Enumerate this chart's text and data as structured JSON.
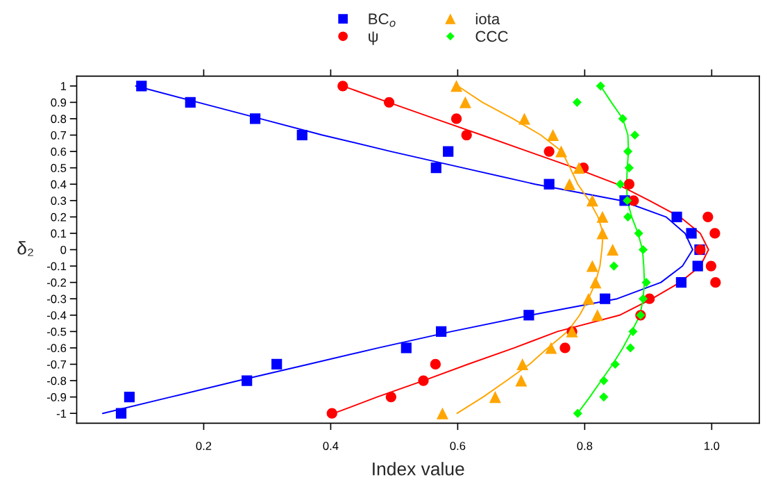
{
  "chart_data": {
    "type": "scatter",
    "xlabel": "Index value",
    "ylabel": "δ₂",
    "xlim": [
      0,
      1.075
    ],
    "ylim": [
      -1.06,
      1.06
    ],
    "xticks": [
      0.2,
      0.4,
      0.6,
      0.8,
      {
        "value": 1,
        "label": "1.0"
      }
    ],
    "yticks": [
      1,
      0.9,
      0.8,
      0.7,
      0.6,
      0.5,
      0.4,
      0.3,
      0.2,
      0.1,
      0,
      -0.1,
      -0.2,
      -0.3,
      -0.4,
      -0.5,
      -0.6,
      -0.7,
      -0.8,
      -0.9,
      -1
    ],
    "grid": false,
    "legend": "top",
    "series": [
      {
        "name": "BC$_{o}$",
        "marker": "square",
        "color": "#0000ff",
        "x": [
          0.102,
          0.179,
          0.281,
          0.355,
          0.585,
          0.566,
          0.744,
          0.863,
          0.945,
          0.968,
          0.981,
          0.978,
          0.952,
          0.832,
          0.712,
          0.574,
          0.519,
          0.315,
          0.268,
          0.083,
          0.07
        ],
        "values": [
          1,
          0.9,
          0.8,
          0.7,
          0.6,
          0.5,
          0.4,
          0.3,
          0.2,
          0.1,
          0,
          -0.1,
          -0.2,
          -0.3,
          -0.4,
          -0.5,
          -0.6,
          -0.7,
          -0.8,
          -0.9,
          -1
        ]
      },
      {
        "name": "ψ",
        "marker": "circle",
        "color": "#ff0000",
        "x": [
          0.419,
          0.492,
          0.598,
          0.614,
          0.744,
          0.798,
          0.87,
          0.877,
          0.994,
          1.005,
          0.982,
          0.999,
          1.006,
          0.902,
          0.888,
          0.78,
          0.769,
          0.565,
          0.546,
          0.495,
          0.402
        ],
        "values": [
          1,
          0.9,
          0.8,
          0.7,
          0.6,
          0.5,
          0.4,
          0.3,
          0.2,
          0.1,
          0,
          -0.1,
          -0.2,
          -0.3,
          -0.4,
          -0.5,
          -0.6,
          -0.7,
          -0.8,
          -0.9,
          -1
        ]
      },
      {
        "name": "iota",
        "marker": "triangle",
        "color": "#ffa500",
        "x": [
          0.598,
          0.612,
          0.705,
          0.75,
          0.763,
          0.791,
          0.776,
          0.812,
          0.828,
          0.828,
          0.844,
          0.812,
          0.817,
          0.806,
          0.82,
          0.78,
          0.747,
          0.702,
          0.7,
          0.659,
          0.576
        ],
        "values": [
          1,
          0.9,
          0.8,
          0.7,
          0.6,
          0.5,
          0.4,
          0.3,
          0.2,
          0.1,
          0,
          -0.1,
          -0.2,
          -0.3,
          -0.4,
          -0.5,
          -0.6,
          -0.7,
          -0.8,
          -0.9,
          -1
        ]
      },
      {
        "name": "CCC",
        "marker": "diamond",
        "color": "#00ff00",
        "x": [
          0.825,
          0.788,
          0.86,
          0.879,
          0.868,
          0.87,
          0.856,
          0.867,
          0.868,
          0.885,
          0.892,
          0.846,
          0.897,
          0.892,
          0.888,
          0.876,
          0.872,
          0.848,
          0.83,
          0.83,
          0.789
        ],
        "values": [
          1,
          0.9,
          0.8,
          0.7,
          0.6,
          0.5,
          0.4,
          0.3,
          0.2,
          0.1,
          0,
          -0.1,
          -0.2,
          -0.3,
          -0.4,
          -0.5,
          -0.6,
          -0.7,
          -0.8,
          -0.9,
          -1
        ]
      },
      {
        "type": "line",
        "color": "#0000ff",
        "x": [
          0.093,
          0.191,
          0.289,
          0.387,
          0.495,
          0.608,
          0.722,
          0.857,
          0.928,
          0.958,
          0.97,
          0.954,
          0.92,
          0.851,
          0.715,
          0.59,
          0.475,
          0.365,
          0.255,
          0.148,
          0.041
        ],
        "values": [
          1,
          0.9,
          0.8,
          0.7,
          0.6,
          0.5,
          0.4,
          0.3,
          0.2,
          0.1,
          0,
          -0.1,
          -0.2,
          -0.3,
          -0.4,
          -0.5,
          -0.6,
          -0.7,
          -0.8,
          -0.9,
          -1
        ]
      },
      {
        "type": "line",
        "color": "#ff0000",
        "x": [
          0.419,
          0.491,
          0.564,
          0.638,
          0.711,
          0.784,
          0.851,
          0.902,
          0.95,
          0.982,
          0.995,
          0.982,
          0.95,
          0.906,
          0.855,
          0.757,
          0.689,
          0.616,
          0.546,
          0.473,
          0.405
        ],
        "values": [
          1,
          0.9,
          0.8,
          0.7,
          0.6,
          0.5,
          0.4,
          0.3,
          0.2,
          0.1,
          0,
          -0.1,
          -0.2,
          -0.3,
          -0.4,
          -0.5,
          -0.6,
          -0.7,
          -0.8,
          -0.9,
          -1
        ]
      },
      {
        "type": "line",
        "color": "#ffa500",
        "x": [
          0.6,
          0.639,
          0.687,
          0.731,
          0.764,
          0.777,
          0.789,
          0.807,
          0.821,
          0.829,
          0.827,
          0.824,
          0.817,
          0.806,
          0.792,
          0.773,
          0.742,
          0.713,
          0.677,
          0.64,
          0.599
        ],
        "values": [
          1,
          0.9,
          0.8,
          0.7,
          0.6,
          0.5,
          0.4,
          0.3,
          0.2,
          0.1,
          0,
          -0.1,
          -0.2,
          -0.3,
          -0.4,
          -0.5,
          -0.6,
          -0.7,
          -0.8,
          -0.9,
          -1
        ]
      },
      {
        "type": "line",
        "color": "#00ff00",
        "x": [
          0.825,
          0.842,
          0.86,
          0.868,
          0.869,
          0.867,
          0.866,
          0.867,
          0.874,
          0.884,
          0.891,
          0.893,
          0.894,
          0.892,
          0.887,
          0.874,
          0.86,
          0.844,
          0.826,
          0.808,
          0.789
        ],
        "values": [
          1,
          0.9,
          0.8,
          0.7,
          0.6,
          0.5,
          0.4,
          0.3,
          0.2,
          0.1,
          0,
          -0.1,
          -0.2,
          -0.3,
          -0.4,
          -0.5,
          -0.6,
          -0.7,
          -0.8,
          -0.9,
          -1
        ]
      }
    ]
  }
}
